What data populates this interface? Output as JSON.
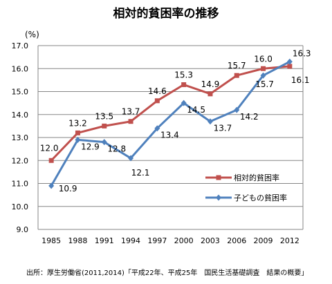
{
  "chart_data": {
    "type": "line",
    "title": "相対的貧困率の推移",
    "y_unit": "(%)",
    "ylim": [
      9.0,
      17.0
    ],
    "y_ticks": [
      "9.0",
      "10.0",
      "11.0",
      "12.0",
      "13.0",
      "14.0",
      "15.0",
      "16.0",
      "17.0"
    ],
    "categories": [
      "1985",
      "1988",
      "1991",
      "1994",
      "1997",
      "2000",
      "2003",
      "2006",
      "2009",
      "2012"
    ],
    "grid": true,
    "legend_position": "right",
    "series": [
      {
        "name": "相対的貧困率",
        "marker": "square",
        "color": "#c0504d",
        "values": [
          12.0,
          13.2,
          13.5,
          13.7,
          14.6,
          15.3,
          14.9,
          15.7,
          16.0,
          16.1
        ],
        "labels": [
          "12.0",
          "13.2",
          "13.5",
          "13.7",
          "14.6",
          "15.3",
          "14.9",
          "15.7",
          "16.0",
          "16.1"
        ]
      },
      {
        "name": "子どもの貧困率",
        "marker": "diamond",
        "color": "#4f81bd",
        "values": [
          10.9,
          12.9,
          12.8,
          12.1,
          13.4,
          14.5,
          13.7,
          14.2,
          15.7,
          16.3
        ],
        "labels": [
          "10.9",
          "12.9",
          "12.8",
          "12.1",
          "13.4",
          "14.5",
          "13.7",
          "14.2",
          "15.7",
          "16.3"
        ]
      }
    ],
    "source": "出所：厚生労働省(2011,2014)「平成22年、平成25年　国民生活基礎調査　結果の概要」"
  }
}
